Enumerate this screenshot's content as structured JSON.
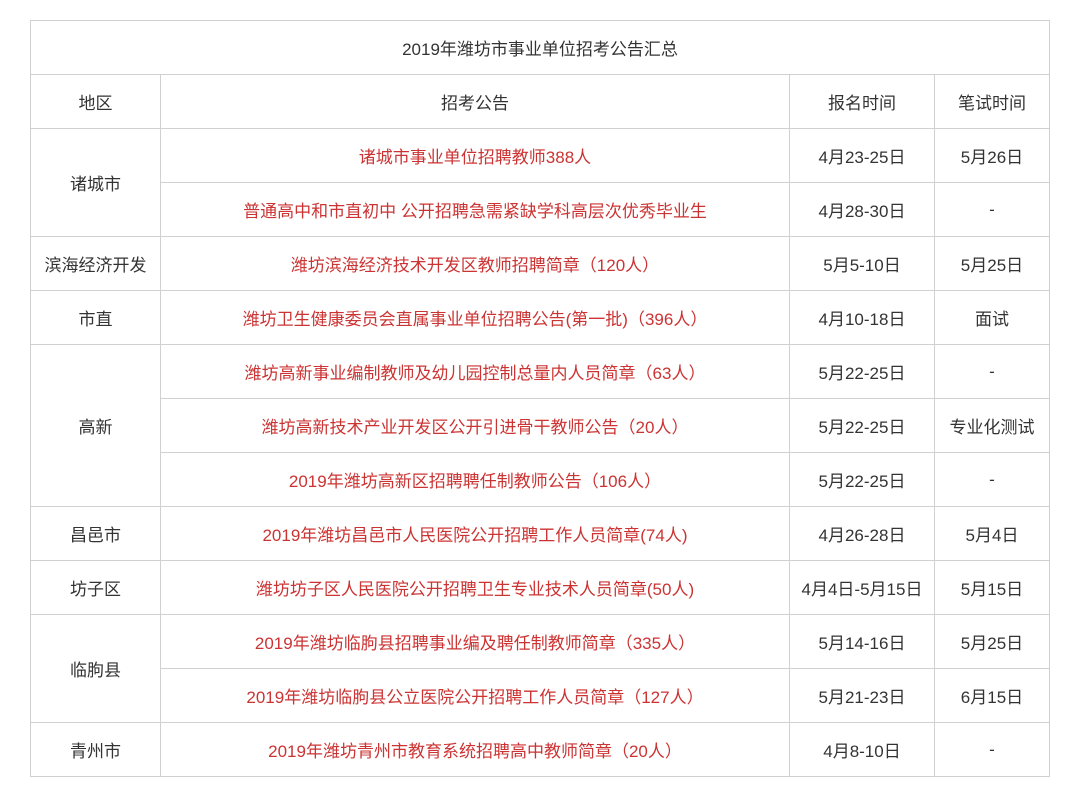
{
  "title": "2019年潍坊市事业单位招考公告汇总",
  "headers": {
    "region": "地区",
    "announcement": "招考公告",
    "regTime": "报名时间",
    "examTime": "笔试时间"
  },
  "rows": [
    {
      "region": "诸城市",
      "rowspan": 2,
      "announcement": "诸城市事业单位招聘教师388人",
      "regTime": "4月23-25日",
      "examTime": "5月26日"
    },
    {
      "announcement": "普通高中和市直初中 公开招聘急需紧缺学科高层次优秀毕业生",
      "regTime": "4月28-30日",
      "examTime": "-"
    },
    {
      "region": "滨海经济开发",
      "rowspan": 1,
      "announcement": "潍坊滨海经济技术开发区教师招聘简章（120人）",
      "regTime": "5月5-10日",
      "examTime": "5月25日"
    },
    {
      "region": "市直",
      "rowspan": 1,
      "announcement": "潍坊卫生健康委员会直属事业单位招聘公告(第一批)（396人）",
      "regTime": "4月10-18日",
      "examTime": "面试"
    },
    {
      "region": "高新",
      "rowspan": 3,
      "announcement": "潍坊高新事业编制教师及幼儿园控制总量内人员简章（63人）",
      "regTime": "5月22-25日",
      "examTime": "-"
    },
    {
      "announcement": "潍坊高新技术产业开发区公开引进骨干教师公告（20人）",
      "regTime": "5月22-25日",
      "examTime": "专业化测试"
    },
    {
      "announcement": "2019年潍坊高新区招聘聘任制教师公告（106人）",
      "regTime": "5月22-25日",
      "examTime": "-"
    },
    {
      "region": "昌邑市",
      "rowspan": 1,
      "announcement": "2019年潍坊昌邑市人民医院公开招聘工作人员简章(74人)",
      "regTime": "4月26-28日",
      "examTime": "5月4日"
    },
    {
      "region": "坊子区",
      "rowspan": 1,
      "announcement": "潍坊坊子区人民医院公开招聘卫生专业技术人员简章(50人)",
      "regTime": "4月4日-5月15日",
      "examTime": "5月15日"
    },
    {
      "region": "临朐县",
      "rowspan": 2,
      "announcement": "2019年潍坊临朐县招聘事业编及聘任制教师简章（335人）",
      "regTime": "5月14-16日",
      "examTime": "5月25日"
    },
    {
      "announcement": "2019年潍坊临朐县公立医院公开招聘工作人员简章（127人）",
      "regTime": "5月21-23日",
      "examTime": "6月15日"
    },
    {
      "region": "青州市",
      "rowspan": 1,
      "announcement": "2019年潍坊青州市教育系统招聘高中教师简章（20人）",
      "regTime": "4月8-10日",
      "examTime": "-"
    }
  ],
  "style": {
    "announcementColor": "#cc3333",
    "textColor": "#333333",
    "borderColor": "#d0d0d0",
    "fontSize": 17
  }
}
